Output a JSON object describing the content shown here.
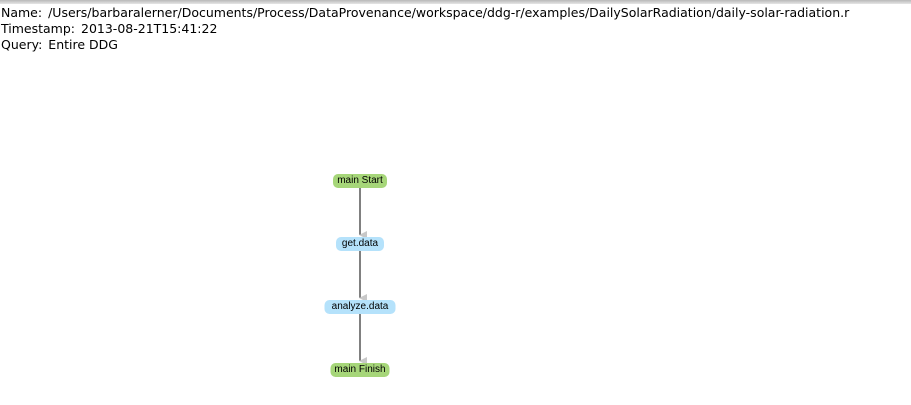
{
  "header": {
    "name_label": "Name:",
    "name_value": "/Users/barbaralerner/Documents/Process/DataProvenance/workspace/ddg-r/examples/DailySolarRadiation/daily-solar-radiation.r",
    "timestamp_label": "Timestamp:",
    "timestamp_value": "2013-08-21T15:41:22",
    "query_label": "Query:",
    "query_value": "Entire DDG"
  },
  "graph": {
    "nodes": [
      {
        "label": "main Start",
        "kind": "start"
      },
      {
        "label": "get.data",
        "kind": "operation"
      },
      {
        "label": "analyze.data",
        "kind": "operation"
      },
      {
        "label": "main Finish",
        "kind": "finish"
      }
    ],
    "colors": {
      "start_finish_fill": "#a6d679",
      "operation_fill": "#b5e2fb",
      "edge": "#000000",
      "arrowhead": "#c8c8c8"
    }
  }
}
